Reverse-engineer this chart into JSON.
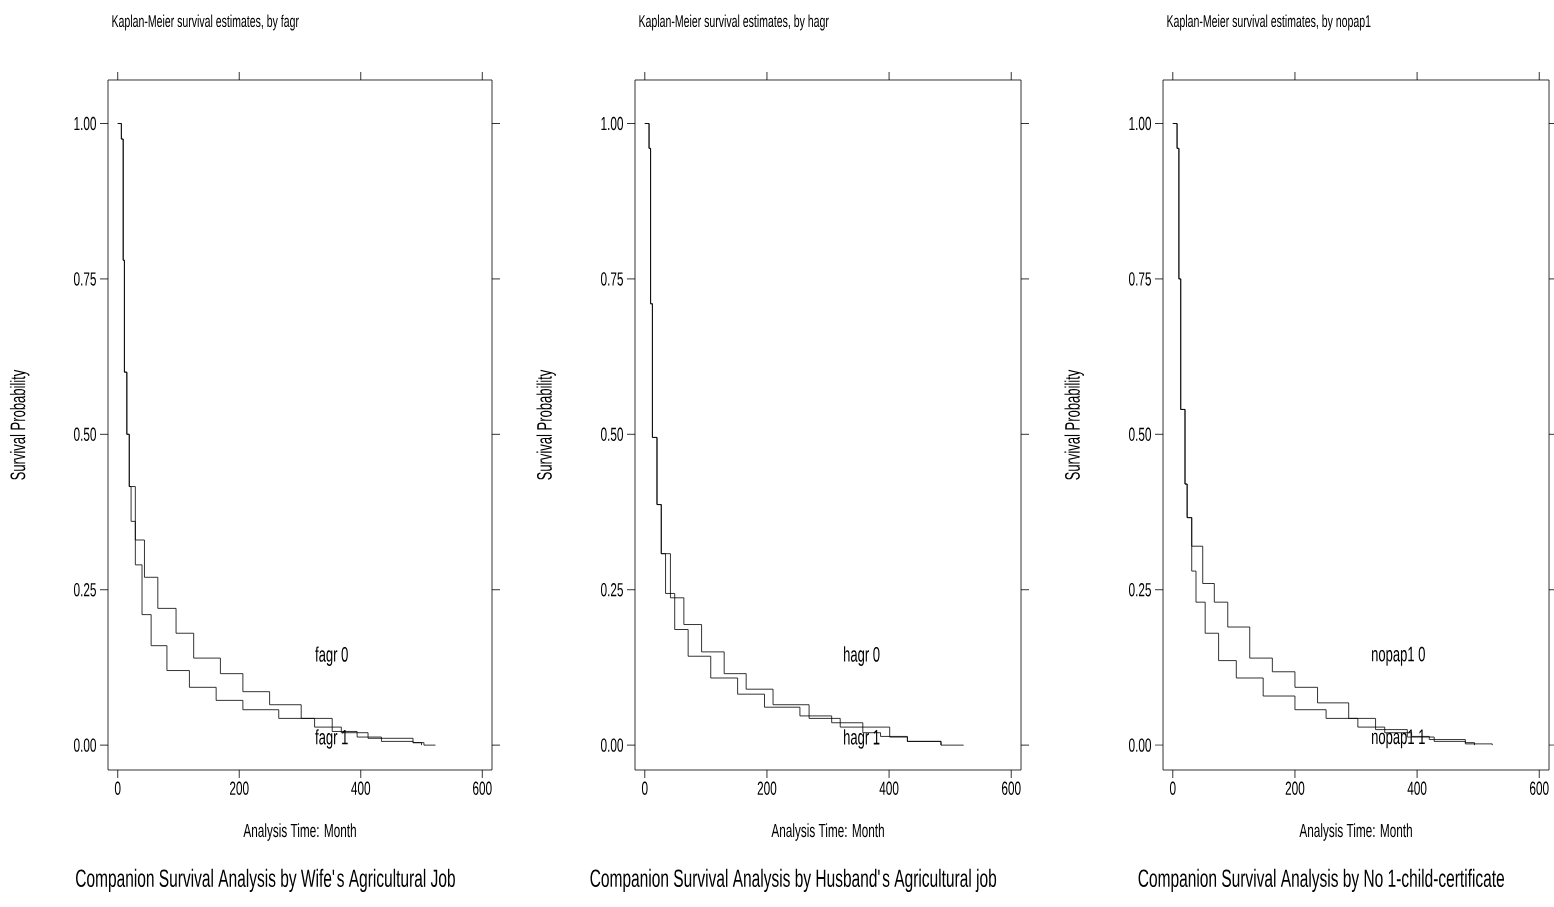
{
  "chart_data": [
    {
      "type": "step",
      "title": "Kaplan-Meier survival estimates, by fagr",
      "xlabel": "Analysis Time: Month",
      "ylabel": "Survival Probability",
      "xlim": [
        -16,
        616
      ],
      "ylim": [
        -0.04,
        1.07
      ],
      "xticks": [
        0,
        200,
        400,
        600
      ],
      "yticks": [
        {
          "value": 0,
          "label": "0.00"
        },
        {
          "value": 0.25,
          "label": "0.25"
        },
        {
          "value": 0.5,
          "label": "0.50"
        },
        {
          "value": 0.75,
          "label": "0.75"
        },
        {
          "value": 1,
          "label": "1.00"
        }
      ],
      "series": [
        {
          "name": "fagr 0",
          "color": "#000000",
          "x": [
            0,
            6,
            9,
            11,
            15,
            19,
            29,
            44,
            66,
            96,
            125,
            169,
            206,
            250,
            302,
            353,
            394,
            434,
            486,
            504,
            523
          ],
          "values": [
            1,
            0.975,
            0.78,
            0.6,
            0.5,
            0.416,
            0.33,
            0.27,
            0.22,
            0.18,
            0.14,
            0.115,
            0.086,
            0.065,
            0.043,
            0.022,
            0.013,
            0.006,
            0.004,
            0,
            0
          ]
        },
        {
          "name": "fagr 1",
          "color": "#000000",
          "x": [
            0,
            6,
            9,
            11,
            15,
            19,
            22,
            29,
            40,
            55,
            81,
            118,
            162,
            206,
            265,
            324,
            368,
            412,
            486,
            500
          ],
          "values": [
            1,
            0.975,
            0.78,
            0.6,
            0.5,
            0.416,
            0.36,
            0.29,
            0.21,
            0.16,
            0.12,
            0.093,
            0.072,
            0.057,
            0.043,
            0.029,
            0.02,
            0.011,
            0.004,
            0
          ]
        }
      ],
      "annotations": [
        "Companion Survival Analysis by Wife's Agricultural Job"
      ]
    },
    {
      "type": "step",
      "title": "Kaplan-Meier survival estimates, by hagr",
      "xlabel": "Analysis Time: Month",
      "ylabel": "Survival Probability",
      "xlim": [
        -16,
        616
      ],
      "ylim": [
        -0.04,
        1.07
      ],
      "xticks": [
        0,
        200,
        400,
        600
      ],
      "yticks": [
        {
          "value": 0,
          "label": "0.00"
        },
        {
          "value": 0.25,
          "label": "0.25"
        },
        {
          "value": 0.5,
          "label": "0.50"
        },
        {
          "value": 0.75,
          "label": "0.75"
        },
        {
          "value": 1,
          "label": "1.00"
        }
      ],
      "series": [
        {
          "name": "hagr 0",
          "color": "#000000",
          "x": [
            0,
            7,
            9.5,
            12.5,
            20,
            27,
            42,
            64,
            93,
            130,
            166,
            210,
            269,
            320,
            401,
            430,
            485,
            522
          ],
          "values": [
            1,
            0.96,
            0.71,
            0.495,
            0.387,
            0.308,
            0.237,
            0.194,
            0.15,
            0.115,
            0.09,
            0.065,
            0.043,
            0.029,
            0.013,
            0.006,
            0,
            0
          ]
        },
        {
          "name": "hagr 1",
          "color": "#000000",
          "x": [
            0,
            7,
            9.5,
            12.5,
            20,
            27,
            34,
            49,
            71,
            108,
            152,
            196,
            254,
            306,
            357,
            386,
            430,
            485
          ],
          "values": [
            1,
            0.96,
            0.71,
            0.495,
            0.387,
            0.308,
            0.244,
            0.186,
            0.143,
            0.108,
            0.082,
            0.061,
            0.047,
            0.036,
            0.02,
            0.014,
            0.006,
            0
          ]
        }
      ],
      "annotations": [
        "Companion Survival Analysis by Husband's Agricultural job"
      ]
    },
    {
      "type": "step",
      "title": "Kaplan-Meier survival estimates, by nopap1",
      "xlabel": "Analysis Time: Month",
      "ylabel": "Survival Probability",
      "xlim": [
        -16,
        616
      ],
      "ylim": [
        -0.04,
        1.07
      ],
      "xticks": [
        0,
        200,
        400,
        600
      ],
      "yticks": [
        {
          "value": 0,
          "label": "0.00"
        },
        {
          "value": 0.25,
          "label": "0.25"
        },
        {
          "value": 0.5,
          "label": "0.50"
        },
        {
          "value": 0.75,
          "label": "0.75"
        },
        {
          "value": 1,
          "label": "1.00"
        }
      ],
      "series": [
        {
          "name": "nopap1 0",
          "color": "#000000",
          "x": [
            0,
            7,
            10,
            13,
            20,
            23.5,
            31,
            49,
            68,
            90,
            126,
            163,
            200,
            237,
            288,
            332,
            384,
            428,
            479,
            523
          ],
          "values": [
            1,
            0.96,
            0.75,
            0.54,
            0.42,
            0.366,
            0.32,
            0.26,
            0.23,
            0.19,
            0.14,
            0.118,
            0.093,
            0.068,
            0.043,
            0.025,
            0.013,
            0.006,
            0.002,
            0
          ]
        },
        {
          "name": "nopap1 1",
          "color": "#000000",
          "x": [
            0,
            7,
            10,
            13,
            20,
            23.5,
            31,
            38,
            53,
            75,
            104,
            148,
            200,
            251,
            303,
            347,
            391,
            420,
            479,
            494
          ],
          "values": [
            1,
            0.96,
            0.75,
            0.54,
            0.42,
            0.366,
            0.28,
            0.23,
            0.18,
            0.136,
            0.108,
            0.079,
            0.057,
            0.043,
            0.029,
            0.02,
            0.014,
            0.009,
            0.004,
            0
          ]
        }
      ],
      "annotations": [
        "Companion Survival Analysis by No 1-child-certificate"
      ]
    }
  ]
}
